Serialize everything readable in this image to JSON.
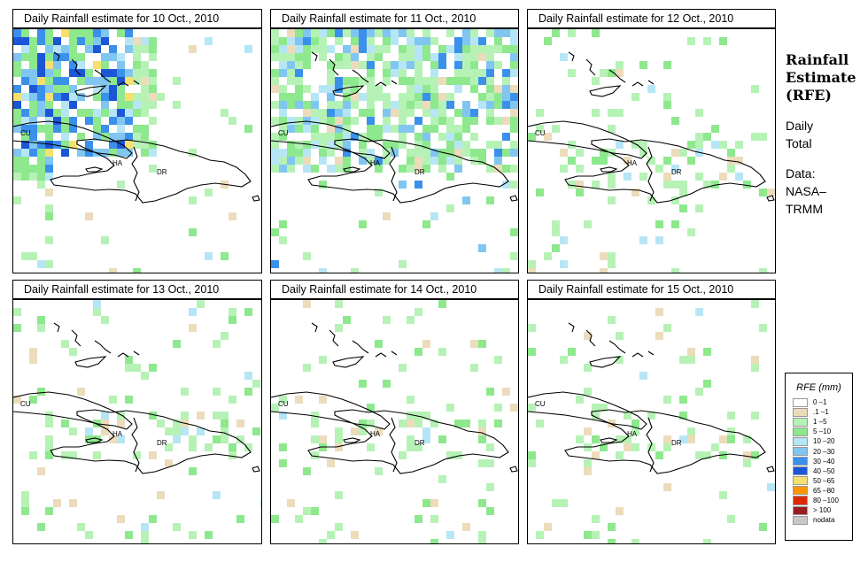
{
  "panels": [
    {
      "title": "Daily Rainfall estimate for  10 Oct., 2010",
      "date": "10 Oct., 2010",
      "rain_level": "heavy-west"
    },
    {
      "title": "Daily Rainfall estimate for  11 Oct., 2010",
      "date": "11 Oct., 2010",
      "rain_level": "moderate-north"
    },
    {
      "title": "Daily Rainfall estimate for  12 Oct., 2010",
      "date": "12 Oct., 2010",
      "rain_level": "light"
    },
    {
      "title": "Daily Rainfall estimate for  13 Oct., 2010",
      "date": "13 Oct., 2010",
      "rain_level": "light"
    },
    {
      "title": "Daily Rainfall estimate for  14 Oct., 2010",
      "date": "14 Oct., 2010",
      "rain_level": "light"
    },
    {
      "title": "Daily Rainfall estimate for  15 Oct., 2010",
      "date": "15 Oct., 2010",
      "rain_level": "light"
    }
  ],
  "map_labels": {
    "cuba": "CU",
    "haiti": "HA",
    "dominican_republic": "DR"
  },
  "side": {
    "title_line1": "Rainfall",
    "title_line2": "Estimate",
    "title_line3": "(RFE)",
    "period_line1": "Daily",
    "period_line2": "Total",
    "source_line1": "Data:",
    "source_line2": "NASA–",
    "source_line3": "TRMM"
  },
  "legend": {
    "title": "RFE (mm)",
    "items": [
      {
        "label": "0 –1",
        "color": "#ffffff"
      },
      {
        "label": ".1 –1",
        "color": "#ecdcbc"
      },
      {
        "label": "1 –5",
        "color": "#b6f2b6"
      },
      {
        "label": "5 –10",
        "color": "#8ee88e"
      },
      {
        "label": "10 –20",
        "color": "#b6e6f6"
      },
      {
        "label": "20 –30",
        "color": "#80c6f0"
      },
      {
        "label": "30 –40",
        "color": "#3a90ea"
      },
      {
        "label": "40 –50",
        "color": "#1c56d6"
      },
      {
        "label": "50 –65",
        "color": "#f6e070"
      },
      {
        "label": "65 –80",
        "color": "#ff9600"
      },
      {
        "label": "80 –100",
        "color": "#dc2a00"
      },
      {
        "label": "> 100",
        "color": "#9a1e1e"
      },
      {
        "label": "nodata",
        "color": "#c8c8c8"
      }
    ]
  }
}
